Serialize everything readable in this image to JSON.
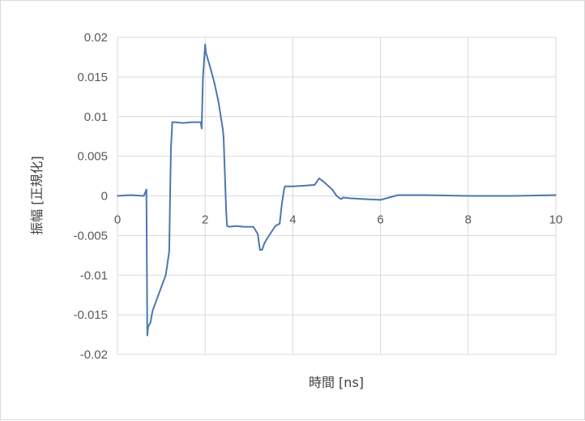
{
  "chart_data": {
    "type": "line",
    "title": "",
    "xlabel": "時間 [ns]",
    "ylabel": "振幅 [正規化]",
    "xlim": [
      0,
      10
    ],
    "ylim": [
      -0.02,
      0.02
    ],
    "x_ticks": [
      0,
      2,
      4,
      6,
      8,
      10
    ],
    "x_tick_labels": [
      "0",
      "2",
      "4",
      "6",
      "8",
      "10"
    ],
    "y_ticks": [
      0.02,
      0.015,
      0.01,
      0.005,
      0,
      -0.005,
      -0.01,
      -0.015,
      -0.02
    ],
    "y_tick_labels": [
      "0.02",
      "0.015",
      "0.01",
      "0.005",
      "0",
      "-0.005",
      "-0.01",
      "-0.015",
      "-0.02"
    ],
    "grid": true,
    "legend": "none",
    "series": [
      {
        "color": "#4a78b0",
        "x": [
          0,
          0.3,
          0.6,
          0.66,
          0.68,
          0.7,
          0.75,
          0.8,
          0.9,
          1.0,
          1.1,
          1.12,
          1.18,
          1.2,
          1.22,
          1.25,
          1.3,
          1.5,
          1.7,
          1.9,
          1.92,
          1.95,
          2.0,
          2.02,
          2.1,
          2.2,
          2.3,
          2.4,
          2.42,
          2.48,
          2.5,
          2.55,
          2.7,
          2.9,
          3.1,
          3.2,
          3.25,
          3.3,
          3.35,
          3.4,
          3.6,
          3.7,
          3.75,
          3.8,
          3.82,
          4.0,
          4.3,
          4.5,
          4.6,
          4.7,
          4.9,
          5.0,
          5.1,
          5.15,
          5.3,
          5.6,
          6.0,
          6.4,
          7.0,
          8.0,
          9.0,
          10.0
        ],
        "y": [
          0.0,
          0.0001,
          0.0,
          0.0008,
          -0.0176,
          -0.0165,
          -0.016,
          -0.0145,
          -0.013,
          -0.0115,
          -0.01,
          -0.0093,
          -0.007,
          0.0,
          0.006,
          0.0093,
          0.0093,
          0.0092,
          0.0093,
          0.0093,
          0.0085,
          0.015,
          0.0191,
          0.018,
          0.0165,
          0.0145,
          0.012,
          0.0085,
          0.0075,
          -0.002,
          -0.0038,
          -0.0039,
          -0.0038,
          -0.0039,
          -0.0039,
          -0.0048,
          -0.0068,
          -0.0068,
          -0.006,
          -0.0055,
          -0.0038,
          -0.0035,
          -0.001,
          0.0008,
          0.0012,
          0.0012,
          0.0013,
          0.0014,
          0.0022,
          0.0018,
          0.0008,
          0.0,
          -0.0004,
          -0.0002,
          -0.0003,
          -0.0004,
          -0.0005,
          0.0001,
          0.0001,
          0.0,
          0.0,
          0.0001
        ]
      }
    ]
  }
}
